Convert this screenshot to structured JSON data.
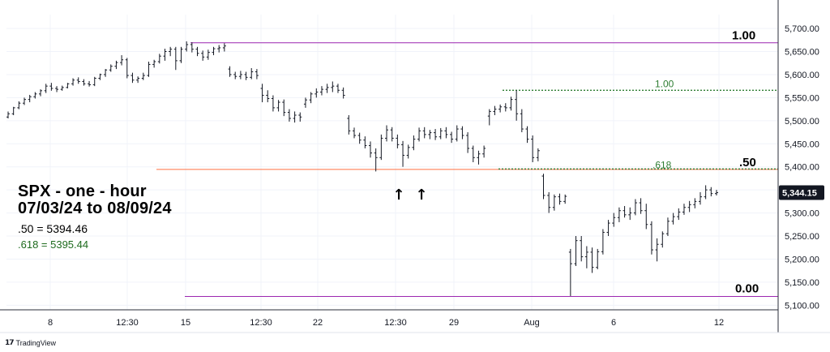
{
  "chart_data": {
    "type": "candlestick",
    "symbol_title": "SPX - one - hour",
    "date_range": "07/03/24 to 08/09/24",
    "notes": [
      {
        "key": "fifty",
        "text": ".50 = 5394.46",
        "color": "#000000"
      },
      {
        "key": "six18",
        "text": ".618 = 5395.44",
        "color": "#1e6b1e"
      }
    ],
    "y_axis": {
      "min": 5090,
      "max": 5730,
      "ticks": [
        "5,700.00",
        "5,650.00",
        "5,600.00",
        "5,550.00",
        "5,500.00",
        "5,450.00",
        "5,400.00",
        "5,350.00",
        "5,300.00",
        "5,250.00",
        "5,200.00",
        "5,150.00",
        "5,100.00"
      ],
      "tick_values": [
        5700,
        5650,
        5600,
        5550,
        5500,
        5450,
        5400,
        5350,
        5300,
        5250,
        5200,
        5150,
        5100
      ]
    },
    "x_axis": {
      "labels": [
        "8",
        "12:30",
        "15",
        "12:30",
        "22",
        "12:30",
        "29",
        "Aug",
        "6",
        "12"
      ]
    },
    "last_price": {
      "value": 5344.15,
      "label": "5,344.15"
    },
    "levels": [
      {
        "name": "big-1.00",
        "value": 5669,
        "label": "1.00",
        "color": "#9c27b0",
        "style": "solid"
      },
      {
        "name": "big-0.00",
        "value": 5119,
        "label": "0.00",
        "color": "#9c27b0",
        "style": "solid"
      },
      {
        "name": "big-.50",
        "value": 5394.46,
        "label": ".50",
        "color": "#ff7043",
        "style": "solid"
      },
      {
        "name": "small-1.00",
        "value": 5566,
        "label": "1.00",
        "color": "#2e7d32",
        "style": "dotted"
      },
      {
        "name": "small-.618",
        "value": 5395.44,
        "label": ".618",
        "color": "#2e7d32",
        "style": "dotted"
      }
    ],
    "annotations": [
      {
        "name": "arrow-1",
        "text": "↑"
      },
      {
        "name": "arrow-2",
        "text": "↑"
      }
    ],
    "bars": [
      [
        5508,
        5520,
        5505,
        5515
      ],
      [
        5515,
        5530,
        5512,
        5528
      ],
      [
        5528,
        5542,
        5525,
        5538
      ],
      [
        5538,
        5550,
        5534,
        5546
      ],
      [
        5546,
        5556,
        5540,
        5552
      ],
      [
        5552,
        5562,
        5548,
        5558
      ],
      [
        5558,
        5568,
        5553,
        5565
      ],
      [
        5565,
        5580,
        5560,
        5575
      ],
      [
        5575,
        5582,
        5565,
        5570
      ],
      [
        5570,
        5575,
        5562,
        5568
      ],
      [
        5568,
        5576,
        5565,
        5572
      ],
      [
        5572,
        5582,
        5570,
        5580
      ],
      [
        5580,
        5592,
        5576,
        5588
      ],
      [
        5588,
        5594,
        5580,
        5585
      ],
      [
        5585,
        5590,
        5576,
        5580
      ],
      [
        5580,
        5586,
        5574,
        5578
      ],
      [
        5578,
        5595,
        5575,
        5592
      ],
      [
        5592,
        5602,
        5588,
        5600
      ],
      [
        5600,
        5612,
        5595,
        5610
      ],
      [
        5610,
        5622,
        5606,
        5618
      ],
      [
        5618,
        5630,
        5612,
        5626
      ],
      [
        5626,
        5642,
        5620,
        5632
      ],
      [
        5632,
        5636,
        5592,
        5598
      ],
      [
        5598,
        5604,
        5582,
        5588
      ],
      [
        5588,
        5596,
        5582,
        5592
      ],
      [
        5592,
        5604,
        5588,
        5598
      ],
      [
        5598,
        5628,
        5595,
        5622
      ],
      [
        5622,
        5632,
        5615,
        5628
      ],
      [
        5628,
        5645,
        5624,
        5640
      ],
      [
        5640,
        5656,
        5630,
        5650
      ],
      [
        5650,
        5660,
        5640,
        5655
      ],
      [
        5655,
        5660,
        5610,
        5630
      ],
      [
        5630,
        5660,
        5625,
        5655
      ],
      [
        5655,
        5672,
        5650,
        5665
      ],
      [
        5665,
        5670,
        5648,
        5655
      ],
      [
        5655,
        5660,
        5640,
        5646
      ],
      [
        5646,
        5652,
        5630,
        5638
      ],
      [
        5638,
        5654,
        5632,
        5648
      ],
      [
        5648,
        5660,
        5642,
        5656
      ],
      [
        5656,
        5664,
        5648,
        5658
      ],
      [
        5658,
        5668,
        5650,
        5662
      ],
      [
        5612,
        5618,
        5595,
        5600
      ],
      [
        5600,
        5606,
        5590,
        5596
      ],
      [
        5596,
        5608,
        5590,
        5600
      ],
      [
        5600,
        5606,
        5588,
        5594
      ],
      [
        5594,
        5614,
        5590,
        5606
      ],
      [
        5606,
        5612,
        5590,
        5598
      ],
      [
        5570,
        5580,
        5540,
        5555
      ],
      [
        5555,
        5566,
        5540,
        5548
      ],
      [
        5548,
        5555,
        5520,
        5528
      ],
      [
        5528,
        5545,
        5520,
        5540
      ],
      [
        5540,
        5546,
        5510,
        5518
      ],
      [
        5518,
        5525,
        5498,
        5505
      ],
      [
        5505,
        5520,
        5496,
        5512
      ],
      [
        5512,
        5518,
        5498,
        5508
      ],
      [
        5536,
        5550,
        5528,
        5545
      ],
      [
        5545,
        5562,
        5538,
        5558
      ],
      [
        5558,
        5570,
        5550,
        5562
      ],
      [
        5562,
        5575,
        5555,
        5568
      ],
      [
        5568,
        5580,
        5560,
        5572
      ],
      [
        5572,
        5585,
        5562,
        5575
      ],
      [
        5575,
        5580,
        5560,
        5566
      ],
      [
        5566,
        5572,
        5548,
        5555
      ],
      [
        5505,
        5512,
        5470,
        5478
      ],
      [
        5478,
        5485,
        5462,
        5468
      ],
      [
        5468,
        5474,
        5450,
        5458
      ],
      [
        5458,
        5466,
        5440,
        5446
      ],
      [
        5446,
        5455,
        5420,
        5430
      ],
      [
        5430,
        5440,
        5390,
        5420
      ],
      [
        5420,
        5470,
        5415,
        5462
      ],
      [
        5462,
        5490,
        5455,
        5480
      ],
      [
        5480,
        5486,
        5455,
        5462
      ],
      [
        5462,
        5470,
        5440,
        5448
      ],
      [
        5448,
        5456,
        5400,
        5425
      ],
      [
        5425,
        5448,
        5418,
        5442
      ],
      [
        5442,
        5468,
        5436,
        5460
      ],
      [
        5460,
        5485,
        5455,
        5478
      ],
      [
        5478,
        5486,
        5462,
        5470
      ],
      [
        5470,
        5480,
        5460,
        5474
      ],
      [
        5474,
        5482,
        5458,
        5465
      ],
      [
        5465,
        5484,
        5460,
        5478
      ],
      [
        5478,
        5486,
        5462,
        5470
      ],
      [
        5470,
        5476,
        5452,
        5460
      ],
      [
        5460,
        5490,
        5455,
        5482
      ],
      [
        5482,
        5488,
        5460,
        5468
      ],
      [
        5468,
        5475,
        5430,
        5440
      ],
      [
        5440,
        5446,
        5410,
        5420
      ],
      [
        5420,
        5435,
        5405,
        5428
      ],
      [
        5428,
        5446,
        5420,
        5440
      ],
      [
        5510,
        5525,
        5490,
        5520
      ],
      [
        5520,
        5532,
        5512,
        5525
      ],
      [
        5525,
        5535,
        5518,
        5530
      ],
      [
        5530,
        5538,
        5520,
        5528
      ],
      [
        5528,
        5552,
        5522,
        5546
      ],
      [
        5546,
        5566,
        5500,
        5515
      ],
      [
        5515,
        5525,
        5475,
        5482
      ],
      [
        5482,
        5488,
        5452,
        5460
      ],
      [
        5460,
        5468,
        5410,
        5420
      ],
      [
        5420,
        5440,
        5412,
        5435
      ],
      [
        5380,
        5385,
        5330,
        5338
      ],
      [
        5338,
        5345,
        5300,
        5312
      ],
      [
        5312,
        5340,
        5305,
        5335
      ],
      [
        5335,
        5342,
        5318,
        5325
      ],
      [
        5325,
        5340,
        5320,
        5336
      ],
      [
        5215,
        5222,
        5120,
        5190
      ],
      [
        5190,
        5250,
        5185,
        5240
      ],
      [
        5240,
        5250,
        5195,
        5205
      ],
      [
        5205,
        5228,
        5180,
        5215
      ],
      [
        5215,
        5225,
        5170,
        5182
      ],
      [
        5182,
        5222,
        5178,
        5216
      ],
      [
        5216,
        5265,
        5210,
        5258
      ],
      [
        5258,
        5285,
        5250,
        5278
      ],
      [
        5278,
        5300,
        5270,
        5290
      ],
      [
        5290,
        5312,
        5280,
        5305
      ],
      [
        5305,
        5315,
        5290,
        5296
      ],
      [
        5296,
        5312,
        5285,
        5300
      ],
      [
        5300,
        5330,
        5295,
        5322
      ],
      [
        5322,
        5332,
        5298,
        5305
      ],
      [
        5305,
        5320,
        5265,
        5275
      ],
      [
        5275,
        5282,
        5210,
        5220
      ],
      [
        5220,
        5245,
        5195,
        5232
      ],
      [
        5232,
        5260,
        5225,
        5255
      ],
      [
        5255,
        5290,
        5250,
        5282
      ],
      [
        5282,
        5300,
        5275,
        5292
      ],
      [
        5292,
        5310,
        5285,
        5302
      ],
      [
        5302,
        5320,
        5296,
        5312
      ],
      [
        5312,
        5326,
        5302,
        5318
      ],
      [
        5318,
        5332,
        5310,
        5325
      ],
      [
        5325,
        5345,
        5318,
        5335
      ],
      [
        5335,
        5360,
        5330,
        5350
      ],
      [
        5350,
        5356,
        5336,
        5342
      ],
      [
        5342,
        5350,
        5338,
        5344
      ]
    ]
  },
  "brand": {
    "text": "TradingView",
    "icon": "tradingview-logo-icon"
  }
}
